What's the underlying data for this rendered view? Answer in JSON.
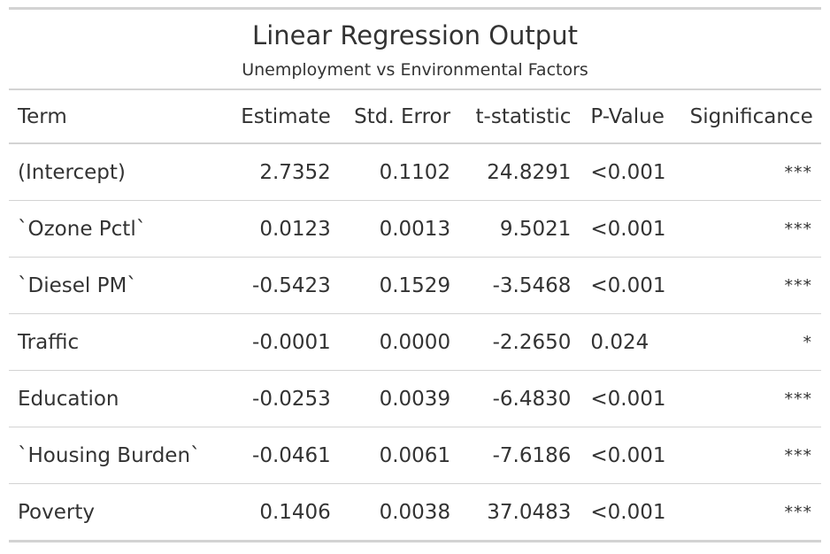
{
  "title": "Linear Regression Output",
  "subtitle": "Unemployment vs Environmental Factors",
  "columns": {
    "term": "Term",
    "estimate": "Estimate",
    "std_error": "Std. Error",
    "t_statistic": "t-statistic",
    "p_value": "P-Value",
    "significance": "Significance"
  },
  "rows": [
    {
      "term": "(Intercept)",
      "estimate": "2.7352",
      "std_error": "0.1102",
      "t_statistic": "24.8291",
      "p_value": "<0.001",
      "significance": "***"
    },
    {
      "term": "`Ozone Pctl`",
      "estimate": "0.0123",
      "std_error": "0.0013",
      "t_statistic": "9.5021",
      "p_value": "<0.001",
      "significance": "***"
    },
    {
      "term": "`Diesel PM`",
      "estimate": "-0.5423",
      "std_error": "0.1529",
      "t_statistic": "-3.5468",
      "p_value": "<0.001",
      "significance": "***"
    },
    {
      "term": "Traffic",
      "estimate": "-0.0001",
      "std_error": "0.0000",
      "t_statistic": "-2.2650",
      "p_value": "0.024",
      "significance": "*"
    },
    {
      "term": "Education",
      "estimate": "-0.0253",
      "std_error": "0.0039",
      "t_statistic": "-6.4830",
      "p_value": "<0.001",
      "significance": "***"
    },
    {
      "term": "`Housing Burden`",
      "estimate": "-0.0461",
      "std_error": "0.0061",
      "t_statistic": "-7.6186",
      "p_value": "<0.001",
      "significance": "***"
    },
    {
      "term": "Poverty",
      "estimate": "0.1406",
      "std_error": "0.0038",
      "t_statistic": "37.0483",
      "p_value": "<0.001",
      "significance": "***"
    }
  ]
}
